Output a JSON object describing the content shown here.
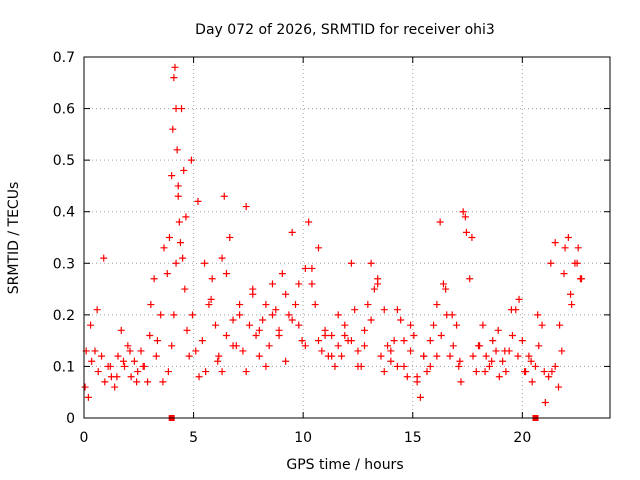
{
  "chart_data": {
    "type": "scatter",
    "title": "Day 072 of 2026, SRMTID for receiver ohi3",
    "xlabel": "GPS time / hours",
    "ylabel": "SRMTID / TECUs",
    "xlim": [
      0,
      24
    ],
    "ylim": [
      0,
      0.7
    ],
    "xticks": [
      0,
      5,
      10,
      15,
      20
    ],
    "yticks": [
      0,
      0.1,
      0.2,
      0.3,
      0.4,
      0.5,
      0.6,
      0.7
    ],
    "xtick_labels": [
      "0",
      "5",
      "10",
      "15",
      "20"
    ],
    "ytick_labels": [
      "0",
      "0.1",
      "0.2",
      "0.3",
      "0.4",
      "0.5",
      "0.6",
      "0.7"
    ],
    "grid": true,
    "marker": "+",
    "color": "#ff0000",
    "series": [
      {
        "name": "SRMTID",
        "x": [
          0.05,
          0.2,
          0.35,
          0.5,
          0.65,
          0.8,
          0.95,
          1.1,
          1.25,
          1.4,
          1.55,
          1.7,
          1.85,
          2.0,
          2.15,
          2.3,
          2.45,
          2.6,
          2.75,
          2.9,
          3.05,
          3.2,
          3.35,
          3.5,
          3.65,
          3.8,
          3.9,
          4.0,
          4.05,
          4.1,
          4.15,
          4.2,
          4.25,
          4.3,
          4.35,
          4.4,
          4.5,
          4.6,
          4.7,
          4.8,
          4.95,
          5.1,
          5.25,
          5.4,
          5.55,
          5.7,
          5.85,
          6.0,
          6.15,
          6.3,
          6.4,
          6.5,
          6.65,
          6.8,
          6.95,
          7.1,
          7.25,
          7.4,
          7.55,
          7.7,
          7.85,
          8.0,
          8.15,
          8.3,
          8.45,
          8.6,
          8.75,
          8.9,
          9.05,
          9.2,
          9.35,
          9.5,
          9.65,
          9.8,
          9.95,
          10.1,
          10.25,
          10.4,
          10.55,
          10.7,
          10.85,
          11.0,
          11.15,
          11.3,
          11.45,
          11.6,
          11.75,
          11.9,
          12.05,
          12.2,
          12.35,
          12.5,
          12.65,
          12.8,
          12.95,
          13.1,
          13.25,
          13.4,
          13.55,
          13.7,
          13.85,
          14.0,
          14.15,
          14.3,
          14.45,
          14.6,
          14.75,
          14.9,
          15.05,
          15.2,
          15.35,
          15.5,
          15.65,
          15.8,
          15.95,
          16.1,
          16.25,
          16.4,
          16.55,
          16.7,
          16.85,
          17.0,
          17.15,
          17.3,
          17.45,
          17.6,
          17.75,
          17.9,
          18.05,
          18.2,
          18.35,
          18.5,
          18.65,
          18.8,
          18.95,
          19.1,
          19.25,
          19.4,
          19.55,
          19.7,
          19.85,
          20.0,
          20.15,
          20.3,
          20.45,
          20.6,
          20.75,
          20.9,
          21.05,
          21.2,
          21.35,
          21.5,
          21.65,
          21.8,
          21.95,
          22.1,
          22.25,
          22.4,
          22.55,
          22.7,
          0.1,
          0.3,
          0.6,
          0.9,
          1.2,
          1.5,
          1.8,
          2.1,
          2.4,
          2.7,
          3.0,
          3.3,
          3.6,
          3.85,
          4.0,
          4.1,
          4.2,
          4.3,
          4.45,
          4.55,
          4.65,
          4.9,
          5.2,
          5.5,
          5.8,
          6.1,
          6.3,
          6.5,
          6.8,
          7.1,
          7.4,
          7.7,
          8.0,
          8.3,
          8.6,
          8.9,
          9.2,
          9.5,
          9.8,
          10.1,
          10.4,
          10.7,
          11.0,
          11.3,
          11.6,
          11.9,
          12.2,
          12.5,
          12.8,
          13.1,
          13.4,
          13.7,
          14.0,
          14.3,
          14.6,
          14.9,
          15.2,
          15.5,
          15.8,
          16.1,
          16.3,
          16.5,
          16.8,
          17.1,
          17.2,
          17.4,
          17.7,
          18.0,
          18.3,
          18.6,
          18.9,
          19.2,
          19.5,
          19.8,
          20.1,
          20.4,
          20.7,
          21.0,
          21.3,
          21.5,
          21.7,
          21.9,
          22.2,
          22.5,
          22.65
        ],
        "y": [
          0.06,
          0.04,
          0.11,
          0.13,
          0.09,
          0.12,
          0.07,
          0.1,
          0.08,
          0.06,
          0.12,
          0.17,
          0.1,
          0.14,
          0.08,
          0.11,
          0.09,
          0.13,
          0.1,
          0.07,
          0.22,
          0.27,
          0.15,
          0.2,
          0.33,
          0.28,
          0.35,
          0.47,
          0.56,
          0.66,
          0.68,
          0.6,
          0.52,
          0.43,
          0.38,
          0.34,
          0.31,
          0.25,
          0.17,
          0.12,
          0.2,
          0.13,
          0.08,
          0.15,
          0.09,
          0.22,
          0.27,
          0.18,
          0.12,
          0.31,
          0.43,
          0.28,
          0.35,
          0.19,
          0.14,
          0.22,
          0.13,
          0.09,
          0.18,
          0.25,
          0.16,
          0.12,
          0.19,
          0.22,
          0.14,
          0.26,
          0.21,
          0.17,
          0.28,
          0.24,
          0.2,
          0.36,
          0.22,
          0.18,
          0.15,
          0.29,
          0.38,
          0.26,
          0.22,
          0.15,
          0.13,
          0.17,
          0.12,
          0.16,
          0.1,
          0.14,
          0.12,
          0.18,
          0.15,
          0.3,
          0.21,
          0.13,
          0.1,
          0.17,
          0.22,
          0.19,
          0.25,
          0.27,
          0.12,
          0.09,
          0.14,
          0.11,
          0.15,
          0.21,
          0.19,
          0.1,
          0.08,
          0.13,
          0.16,
          0.08,
          0.04,
          0.12,
          0.09,
          0.15,
          0.18,
          0.12,
          0.38,
          0.26,
          0.2,
          0.12,
          0.14,
          0.18,
          0.11,
          0.4,
          0.36,
          0.27,
          0.12,
          0.09,
          0.14,
          0.18,
          0.12,
          0.1,
          0.15,
          0.13,
          0.08,
          0.11,
          0.09,
          0.13,
          0.16,
          0.21,
          0.23,
          0.15,
          0.09,
          0.12,
          0.07,
          0.1,
          0.14,
          0.18,
          0.03,
          0.08,
          0.09,
          0.1,
          0.06,
          0.13,
          0.33,
          0.35,
          0.22,
          0.3,
          0.33,
          0.27,
          0.13,
          0.18,
          0.21,
          0.31,
          0.1,
          0.08,
          0.11,
          0.13,
          0.07,
          0.1,
          0.16,
          0.12,
          0.07,
          0.09,
          0.14,
          0.2,
          0.3,
          0.45,
          0.6,
          0.48,
          0.39,
          0.5,
          0.42,
          0.3,
          0.23,
          0.11,
          0.09,
          0.16,
          0.14,
          0.2,
          0.41,
          0.24,
          0.17,
          0.1,
          0.2,
          0.16,
          0.11,
          0.19,
          0.26,
          0.14,
          0.29,
          0.33,
          0.16,
          0.12,
          0.2,
          0.16,
          0.15,
          0.1,
          0.14,
          0.3,
          0.26,
          0.21,
          0.13,
          0.1,
          0.15,
          0.18,
          0.07,
          0.12,
          0.1,
          0.22,
          0.16,
          0.25,
          0.2,
          0.1,
          0.07,
          0.39,
          0.35,
          0.14,
          0.09,
          0.11,
          0.17,
          0.13,
          0.21,
          0.12,
          0.09,
          0.11,
          0.2,
          0.09,
          0.3,
          0.34,
          0.18,
          0.28,
          0.24,
          0.3,
          0.27
        ]
      }
    ],
    "time_markers_x": [
      4.0,
      20.6
    ]
  }
}
